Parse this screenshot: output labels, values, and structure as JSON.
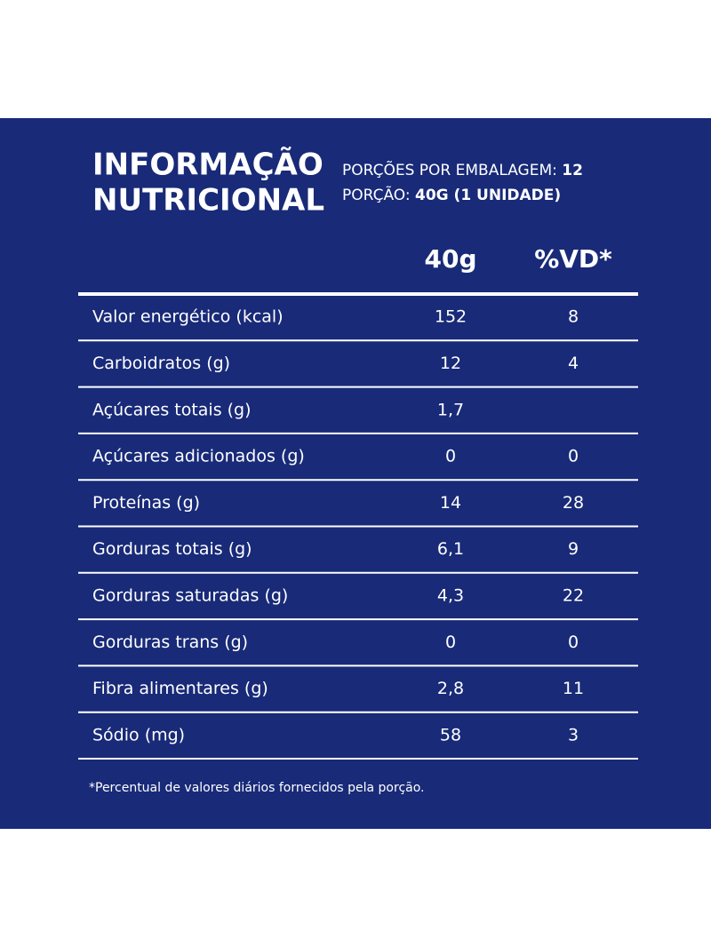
{
  "header": {
    "title_line1": "INFORMAÇÃO",
    "title_line2": "NUTRICIONAL",
    "servings_label": "PORÇÕES POR EMBALAGEM:",
    "servings_value": "12",
    "portion_label": "PORÇÃO:",
    "portion_value": "40G (1 UNIDADE)"
  },
  "table": {
    "columns": [
      "40g",
      "%VD*"
    ],
    "rows": [
      {
        "nutrient": "Valor energético (kcal)",
        "amount": "152",
        "vd": "8"
      },
      {
        "nutrient": "Carboidratos (g)",
        "amount": "12",
        "vd": "4"
      },
      {
        "nutrient": "Açúcares totais (g)",
        "amount": "1,7"
      },
      {
        "nutrient": "Açúcares adicionados (g)",
        "amount": "0",
        "vd": "0"
      },
      {
        "nutrient": "Proteínas (g)",
        "amount": "14",
        "vd": "28"
      },
      {
        "nutrient": "Gorduras totais (g)",
        "amount": "6,1",
        "vd": "9"
      },
      {
        "nutrient": "Gorduras saturadas (g)",
        "amount": "4,3",
        "vd": "22"
      },
      {
        "nutrient": "Gorduras trans (g)",
        "amount": "0",
        "vd": "0"
      },
      {
        "nutrient": "Fibra alimentares (g)",
        "amount": "2,8",
        "vd": "11"
      },
      {
        "nutrient": "Sódio (mg)",
        "amount": "58",
        "vd": "3"
      }
    ]
  },
  "footnote": "*Percentual de valores diários fornecidos pela porção."
}
